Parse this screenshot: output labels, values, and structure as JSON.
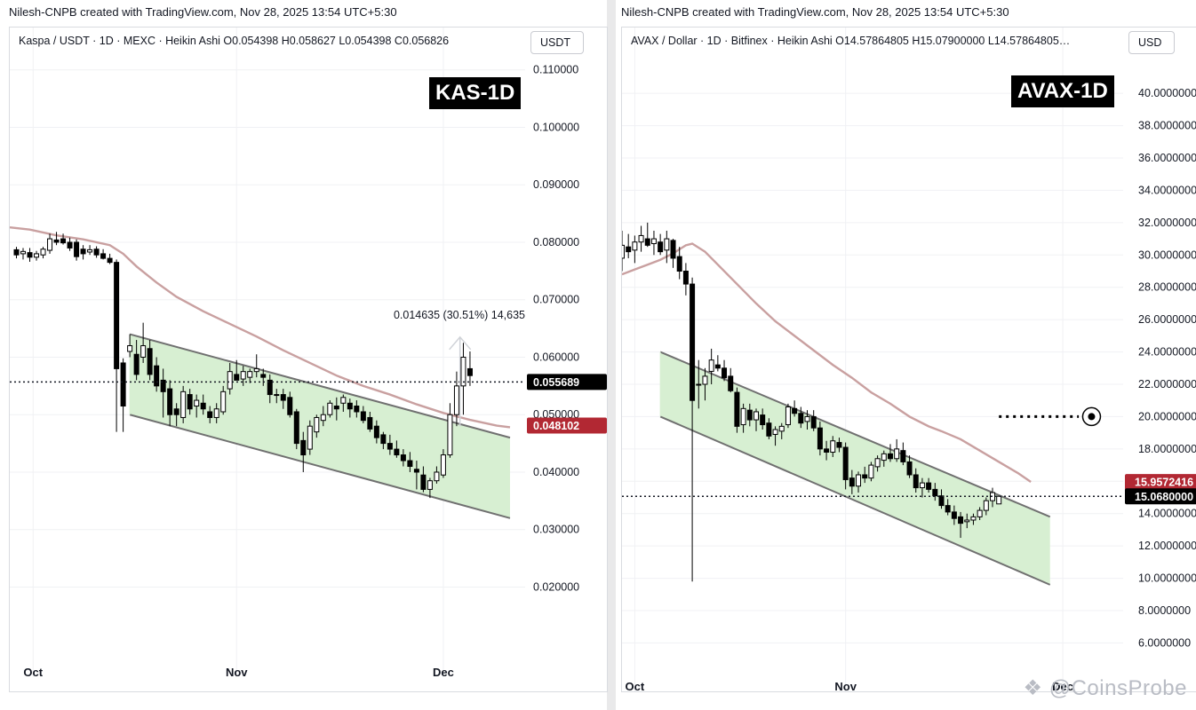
{
  "left": {
    "credit": "Nilesh-CNPB created with TradingView.com, Nov 28, 2025 13:54 UTC+5:30",
    "legend": "Kaspa / USDT · 1D · MEXC · Heikin Ashi  O0.054398  H0.058627  L0.054398  C0.056826",
    "currency": "USDT",
    "badge": "KAS-1D",
    "measure_label": "0.014635 (30.51%) 14,635",
    "price_tag_current": "0.055689",
    "price_tag_ma": "0.048102",
    "colors": {
      "up": "#ffffff",
      "down": "#000000",
      "ma": "#c9a0a0",
      "channel_fill": "#d7efd2",
      "channel_line": "#707070",
      "tag_red": "#b22833"
    }
  },
  "right": {
    "credit": "Nilesh-CNPB created with TradingView.com, Nov 28, 2025 13:54 UTC+5:30",
    "legend": "AVAX / Dollar · 1D · Bitfinex · Heikin Ashi  O14.57864805  H15.07900000  L14.57864805…",
    "currency": "USD",
    "badge": "AVAX-1D",
    "price_tag_ma": "15.9572416",
    "price_tag_current": "15.0680000",
    "target_icon": "target-circle-icon",
    "colors": {
      "up": "#ffffff",
      "down": "#000000",
      "ma": "#c9a0a0",
      "channel_fill": "#d7efd2",
      "channel_line": "#707070",
      "tag_red": "#b22833"
    }
  },
  "watermark": "@CoinsProbe",
  "watermark_icon": "coinsprobe-logo-icon",
  "chart_data": [
    {
      "type": "candlestick",
      "title": "Kaspa / USDT · 1D · MEXC · Heikin Ashi",
      "x_ticks": [
        "Oct",
        "Nov",
        "Dec"
      ],
      "y_ticks": [
        "0.110000",
        "0.100000",
        "0.090000",
        "0.080000",
        "0.070000",
        "0.060000",
        "0.050000",
        "0.040000",
        "0.030000",
        "0.020000"
      ],
      "ylim": [
        0.0105,
        0.1115
      ],
      "xlim": [
        -1,
        76
      ],
      "current_price": 0.055689,
      "ma_last": 0.048102,
      "candles": [
        {
          "o": 0.0787,
          "h": 0.0792,
          "l": 0.0772,
          "c": 0.0778
        },
        {
          "o": 0.078,
          "h": 0.079,
          "l": 0.077,
          "c": 0.0784
        },
        {
          "o": 0.0782,
          "h": 0.079,
          "l": 0.0766,
          "c": 0.0774
        },
        {
          "o": 0.0774,
          "h": 0.0785,
          "l": 0.0768,
          "c": 0.078
        },
        {
          "o": 0.0778,
          "h": 0.0792,
          "l": 0.0772,
          "c": 0.0788
        },
        {
          "o": 0.0786,
          "h": 0.0815,
          "l": 0.078,
          "c": 0.0806
        },
        {
          "o": 0.0804,
          "h": 0.0818,
          "l": 0.0795,
          "c": 0.08
        },
        {
          "o": 0.0806,
          "h": 0.0815,
          "l": 0.0796,
          "c": 0.0799
        },
        {
          "o": 0.08,
          "h": 0.0808,
          "l": 0.0785,
          "c": 0.079
        },
        {
          "o": 0.08,
          "h": 0.0805,
          "l": 0.0768,
          "c": 0.0775
        },
        {
          "o": 0.0788,
          "h": 0.0795,
          "l": 0.077,
          "c": 0.078
        },
        {
          "o": 0.0783,
          "h": 0.0795,
          "l": 0.0778,
          "c": 0.0787
        },
        {
          "o": 0.0788,
          "h": 0.0793,
          "l": 0.0773,
          "c": 0.0778
        },
        {
          "o": 0.078,
          "h": 0.0788,
          "l": 0.077,
          "c": 0.0772
        },
        {
          "o": 0.0772,
          "h": 0.078,
          "l": 0.0762,
          "c": 0.0765
        },
        {
          "o": 0.0765,
          "h": 0.077,
          "l": 0.047,
          "c": 0.058
        },
        {
          "o": 0.059,
          "h": 0.0598,
          "l": 0.047,
          "c": 0.0515
        },
        {
          "o": 0.061,
          "h": 0.064,
          "l": 0.06,
          "c": 0.062
        },
        {
          "o": 0.0605,
          "h": 0.063,
          "l": 0.056,
          "c": 0.057
        },
        {
          "o": 0.06,
          "h": 0.066,
          "l": 0.059,
          "c": 0.062
        },
        {
          "o": 0.0615,
          "h": 0.063,
          "l": 0.056,
          "c": 0.057
        },
        {
          "o": 0.0585,
          "h": 0.06,
          "l": 0.054,
          "c": 0.055
        },
        {
          "o": 0.056,
          "h": 0.058,
          "l": 0.0495,
          "c": 0.054
        },
        {
          "o": 0.0545,
          "h": 0.056,
          "l": 0.048,
          "c": 0.05
        },
        {
          "o": 0.051,
          "h": 0.052,
          "l": 0.048,
          "c": 0.05
        },
        {
          "o": 0.0495,
          "h": 0.055,
          "l": 0.0485,
          "c": 0.054
        },
        {
          "o": 0.0535,
          "h": 0.0545,
          "l": 0.05,
          "c": 0.051
        },
        {
          "o": 0.0515,
          "h": 0.0535,
          "l": 0.0495,
          "c": 0.0525
        },
        {
          "o": 0.052,
          "h": 0.0535,
          "l": 0.05,
          "c": 0.051
        },
        {
          "o": 0.0505,
          "h": 0.0515,
          "l": 0.0485,
          "c": 0.0495
        },
        {
          "o": 0.0495,
          "h": 0.052,
          "l": 0.0485,
          "c": 0.051
        },
        {
          "o": 0.0505,
          "h": 0.055,
          "l": 0.05,
          "c": 0.054
        },
        {
          "o": 0.0545,
          "h": 0.059,
          "l": 0.0535,
          "c": 0.0575
        },
        {
          "o": 0.057,
          "h": 0.0595,
          "l": 0.056,
          "c": 0.056
        },
        {
          "o": 0.0562,
          "h": 0.0585,
          "l": 0.055,
          "c": 0.0575
        },
        {
          "o": 0.0565,
          "h": 0.058,
          "l": 0.0555,
          "c": 0.0575
        },
        {
          "o": 0.0575,
          "h": 0.0605,
          "l": 0.0565,
          "c": 0.058
        },
        {
          "o": 0.057,
          "h": 0.058,
          "l": 0.055,
          "c": 0.0565
        },
        {
          "o": 0.056,
          "h": 0.057,
          "l": 0.052,
          "c": 0.0535
        },
        {
          "o": 0.0535,
          "h": 0.0545,
          "l": 0.052,
          "c": 0.0535
        },
        {
          "o": 0.0535,
          "h": 0.0545,
          "l": 0.051,
          "c": 0.0525
        },
        {
          "o": 0.053,
          "h": 0.054,
          "l": 0.0495,
          "c": 0.05
        },
        {
          "o": 0.0505,
          "h": 0.051,
          "l": 0.044,
          "c": 0.045
        },
        {
          "o": 0.0455,
          "h": 0.047,
          "l": 0.04,
          "c": 0.043
        },
        {
          "o": 0.044,
          "h": 0.049,
          "l": 0.043,
          "c": 0.048
        },
        {
          "o": 0.047,
          "h": 0.05,
          "l": 0.046,
          "c": 0.0495
        },
        {
          "o": 0.049,
          "h": 0.0515,
          "l": 0.048,
          "c": 0.05
        },
        {
          "o": 0.05,
          "h": 0.0525,
          "l": 0.0495,
          "c": 0.052
        },
        {
          "o": 0.0515,
          "h": 0.053,
          "l": 0.049,
          "c": 0.051
        },
        {
          "o": 0.052,
          "h": 0.0535,
          "l": 0.0505,
          "c": 0.053
        },
        {
          "o": 0.052,
          "h": 0.0528,
          "l": 0.0495,
          "c": 0.051
        },
        {
          "o": 0.0515,
          "h": 0.0525,
          "l": 0.0495,
          "c": 0.0505
        },
        {
          "o": 0.0505,
          "h": 0.0515,
          "l": 0.0485,
          "c": 0.049
        },
        {
          "o": 0.0495,
          "h": 0.0505,
          "l": 0.047,
          "c": 0.0475
        },
        {
          "o": 0.048,
          "h": 0.049,
          "l": 0.045,
          "c": 0.046
        },
        {
          "o": 0.0465,
          "h": 0.047,
          "l": 0.044,
          "c": 0.045
        },
        {
          "o": 0.045,
          "h": 0.0465,
          "l": 0.043,
          "c": 0.044
        },
        {
          "o": 0.044,
          "h": 0.0455,
          "l": 0.0425,
          "c": 0.043
        },
        {
          "o": 0.043,
          "h": 0.044,
          "l": 0.041,
          "c": 0.042
        },
        {
          "o": 0.042,
          "h": 0.0435,
          "l": 0.04,
          "c": 0.041
        },
        {
          "o": 0.0405,
          "h": 0.042,
          "l": 0.037,
          "c": 0.04
        },
        {
          "o": 0.0395,
          "h": 0.041,
          "l": 0.0365,
          "c": 0.037
        },
        {
          "o": 0.037,
          "h": 0.039,
          "l": 0.0355,
          "c": 0.0385
        },
        {
          "o": 0.0385,
          "h": 0.041,
          "l": 0.038,
          "c": 0.04
        },
        {
          "o": 0.0395,
          "h": 0.044,
          "l": 0.039,
          "c": 0.043
        },
        {
          "o": 0.043,
          "h": 0.052,
          "l": 0.0425,
          "c": 0.05
        },
        {
          "o": 0.05,
          "h": 0.0575,
          "l": 0.048,
          "c": 0.055
        },
        {
          "o": 0.055,
          "h": 0.0625,
          "l": 0.05,
          "c": 0.06
        },
        {
          "o": 0.058,
          "h": 0.061,
          "l": 0.055,
          "c": 0.0568
        }
      ],
      "ma": [
        [
          -1,
          0.0826
        ],
        [
          2,
          0.0822
        ],
        [
          6,
          0.0812
        ],
        [
          10,
          0.0805
        ],
        [
          14,
          0.0795
        ],
        [
          16,
          0.078
        ],
        [
          18,
          0.0758
        ],
        [
          21,
          0.073
        ],
        [
          24,
          0.0705
        ],
        [
          28,
          0.068
        ],
        [
          32,
          0.0658
        ],
        [
          36,
          0.0636
        ],
        [
          40,
          0.0612
        ],
        [
          44,
          0.059
        ],
        [
          48,
          0.0568
        ],
        [
          52,
          0.055
        ],
        [
          56,
          0.0535
        ],
        [
          60,
          0.0518
        ],
        [
          64,
          0.0503
        ],
        [
          68,
          0.0491
        ],
        [
          72,
          0.0481
        ],
        [
          74,
          0.0478
        ]
      ],
      "channel": {
        "upper": [
          [
            17,
            0.064
          ],
          [
            74,
            0.046
          ]
        ],
        "lower": [
          [
            17,
            0.05
          ],
          [
            74,
            0.032
          ]
        ]
      }
    },
    {
      "type": "candlestick",
      "title": "AVAX / Dollar · 1D · Bitfinex · Heikin Ashi",
      "x_ticks": [
        "Oct",
        "Nov",
        "Dec"
      ],
      "y_ticks": [
        "40.0000000",
        "38.0000000",
        "36.0000000",
        "34.0000000",
        "32.0000000",
        "30.0000000",
        "28.0000000",
        "26.0000000",
        "24.0000000",
        "22.0000000",
        "20.0000000",
        "18.0000000",
        "16.0000000",
        "14.0000000",
        "12.0000000",
        "10.0000000",
        "8.0000000",
        "6.0000000"
      ],
      "ylim": [
        5.2,
        41.6
      ],
      "xlim": [
        0,
        79
      ],
      "current_price": 15.068,
      "ma_last": 15.9572416,
      "target_price": 20.0,
      "candles": [
        {
          "o": 29.8,
          "h": 31.5,
          "l": 29.0,
          "c": 30.6
        },
        {
          "o": 30.5,
          "h": 31.3,
          "l": 29.8,
          "c": 30.2
        },
        {
          "o": 30.3,
          "h": 31.2,
          "l": 29.5,
          "c": 30.8
        },
        {
          "o": 30.8,
          "h": 31.8,
          "l": 30.2,
          "c": 31.2
        },
        {
          "o": 31.0,
          "h": 32.0,
          "l": 30.5,
          "c": 30.6
        },
        {
          "o": 30.7,
          "h": 31.5,
          "l": 30.0,
          "c": 31.0
        },
        {
          "o": 30.8,
          "h": 31.3,
          "l": 30.0,
          "c": 30.2
        },
        {
          "o": 30.3,
          "h": 31.5,
          "l": 29.5,
          "c": 31.0
        },
        {
          "o": 30.9,
          "h": 31.0,
          "l": 29.2,
          "c": 29.8
        },
        {
          "o": 29.9,
          "h": 30.5,
          "l": 28.5,
          "c": 29.0
        },
        {
          "o": 29.0,
          "h": 29.5,
          "l": 27.5,
          "c": 28.2
        },
        {
          "o": 28.2,
          "h": 28.6,
          "l": 9.8,
          "c": 21.0
        },
        {
          "o": 22.0,
          "h": 23.5,
          "l": 20.5,
          "c": 22.0
        },
        {
          "o": 22.0,
          "h": 23.0,
          "l": 21.0,
          "c": 22.5
        },
        {
          "o": 22.8,
          "h": 24.2,
          "l": 22.0,
          "c": 23.5
        },
        {
          "o": 23.2,
          "h": 23.8,
          "l": 22.8,
          "c": 23.0
        },
        {
          "o": 23.0,
          "h": 23.5,
          "l": 22.2,
          "c": 22.4
        },
        {
          "o": 22.5,
          "h": 23.0,
          "l": 21.5,
          "c": 21.6
        },
        {
          "o": 21.5,
          "h": 21.8,
          "l": 19.0,
          "c": 19.4
        },
        {
          "o": 19.5,
          "h": 20.8,
          "l": 19.0,
          "c": 20.5
        },
        {
          "o": 20.4,
          "h": 20.8,
          "l": 19.4,
          "c": 19.8
        },
        {
          "o": 19.8,
          "h": 20.5,
          "l": 19.1,
          "c": 20.3
        },
        {
          "o": 20.1,
          "h": 20.5,
          "l": 19.2,
          "c": 19.5
        },
        {
          "o": 19.6,
          "h": 19.9,
          "l": 18.6,
          "c": 18.8
        },
        {
          "o": 18.9,
          "h": 19.4,
          "l": 18.2,
          "c": 19.2
        },
        {
          "o": 19.1,
          "h": 19.6,
          "l": 18.6,
          "c": 19.4
        },
        {
          "o": 19.5,
          "h": 20.8,
          "l": 19.3,
          "c": 20.6
        },
        {
          "o": 20.5,
          "h": 21.0,
          "l": 20.0,
          "c": 20.2
        },
        {
          "o": 20.2,
          "h": 20.6,
          "l": 19.3,
          "c": 19.6
        },
        {
          "o": 19.7,
          "h": 20.4,
          "l": 19.2,
          "c": 20.0
        },
        {
          "o": 20.0,
          "h": 20.4,
          "l": 19.1,
          "c": 19.3
        },
        {
          "o": 19.3,
          "h": 19.7,
          "l": 17.6,
          "c": 18.0
        },
        {
          "o": 18.0,
          "h": 18.5,
          "l": 17.3,
          "c": 17.8
        },
        {
          "o": 17.8,
          "h": 18.8,
          "l": 17.5,
          "c": 18.5
        },
        {
          "o": 18.4,
          "h": 18.7,
          "l": 17.8,
          "c": 18.1
        },
        {
          "o": 18.1,
          "h": 18.4,
          "l": 15.5,
          "c": 16.1
        },
        {
          "o": 16.2,
          "h": 16.7,
          "l": 15.2,
          "c": 15.7
        },
        {
          "o": 15.7,
          "h": 16.6,
          "l": 15.3,
          "c": 16.4
        },
        {
          "o": 16.4,
          "h": 16.9,
          "l": 15.9,
          "c": 16.2
        },
        {
          "o": 16.2,
          "h": 17.2,
          "l": 16.0,
          "c": 17.0
        },
        {
          "o": 16.9,
          "h": 17.6,
          "l": 16.6,
          "c": 17.4
        },
        {
          "o": 17.3,
          "h": 17.9,
          "l": 16.9,
          "c": 17.7
        },
        {
          "o": 17.7,
          "h": 18.3,
          "l": 17.2,
          "c": 17.4
        },
        {
          "o": 17.4,
          "h": 18.6,
          "l": 17.2,
          "c": 18.0
        },
        {
          "o": 17.9,
          "h": 18.4,
          "l": 17.0,
          "c": 17.2
        },
        {
          "o": 17.2,
          "h": 17.6,
          "l": 16.2,
          "c": 16.4
        },
        {
          "o": 16.4,
          "h": 16.8,
          "l": 15.3,
          "c": 15.6
        },
        {
          "o": 15.6,
          "h": 16.2,
          "l": 15.0,
          "c": 15.9
        },
        {
          "o": 15.9,
          "h": 16.2,
          "l": 15.3,
          "c": 15.5
        },
        {
          "o": 15.5,
          "h": 15.9,
          "l": 14.8,
          "c": 15.1
        },
        {
          "o": 15.1,
          "h": 15.5,
          "l": 14.3,
          "c": 14.5
        },
        {
          "o": 14.5,
          "h": 14.9,
          "l": 13.9,
          "c": 14.1
        },
        {
          "o": 14.1,
          "h": 14.5,
          "l": 13.3,
          "c": 13.7
        },
        {
          "o": 13.8,
          "h": 14.1,
          "l": 12.5,
          "c": 13.4
        },
        {
          "o": 13.5,
          "h": 14.0,
          "l": 13.1,
          "c": 13.6
        },
        {
          "o": 13.6,
          "h": 14.0,
          "l": 13.3,
          "c": 13.8
        },
        {
          "o": 13.8,
          "h": 14.4,
          "l": 13.6,
          "c": 14.2
        },
        {
          "o": 14.2,
          "h": 15.0,
          "l": 13.9,
          "c": 14.8
        },
        {
          "o": 14.8,
          "h": 15.6,
          "l": 14.4,
          "c": 15.3
        },
        {
          "o": 14.6,
          "h": 15.1,
          "l": 14.6,
          "c": 15.07
        }
      ],
      "ma": [
        [
          0,
          28.8
        ],
        [
          2,
          29.1
        ],
        [
          4,
          29.4
        ],
        [
          6,
          29.7
        ],
        [
          8,
          30.1
        ],
        [
          10,
          30.6
        ],
        [
          11,
          30.7
        ],
        [
          13,
          30.2
        ],
        [
          15,
          29.4
        ],
        [
          18,
          28.2
        ],
        [
          21,
          27.0
        ],
        [
          24,
          25.9
        ],
        [
          27,
          25.0
        ],
        [
          30,
          24.1
        ],
        [
          33,
          23.2
        ],
        [
          36,
          22.4
        ],
        [
          39,
          21.5
        ],
        [
          42,
          20.8
        ],
        [
          45,
          20.0
        ],
        [
          48,
          19.4
        ],
        [
          50,
          19.1
        ],
        [
          53,
          18.6
        ],
        [
          56,
          17.9
        ],
        [
          59,
          17.2
        ],
        [
          62,
          16.5
        ],
        [
          64,
          15.96
        ]
      ],
      "channel": {
        "upper": [
          [
            6,
            24.0
          ],
          [
            67,
            13.8
          ]
        ],
        "lower": [
          [
            6,
            20.0
          ],
          [
            67,
            9.6
          ]
        ]
      }
    }
  ]
}
